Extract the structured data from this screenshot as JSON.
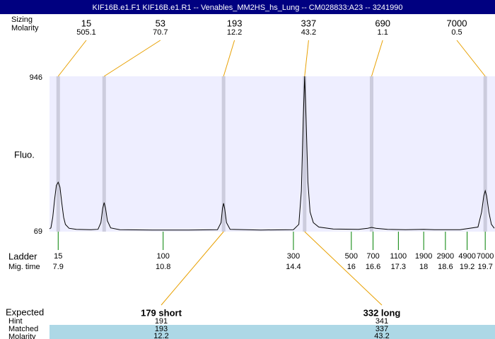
{
  "header": {
    "title": "KIF16B.e1.F1  KIF16B.e1.R1 -- Venables_MM2HS_hs_Lung -- CM028833:A23 -- 3241990"
  },
  "chart_data": {
    "type": "line",
    "y_label": "Fluo.",
    "color": "#000000",
    "ylim": [
      69,
      946
    ],
    "yticks": [
      69,
      946
    ],
    "xlim": [
      7.66,
      19.97
    ],
    "x": [
      7.66,
      7.7,
      7.75,
      7.8,
      7.85,
      7.9,
      7.95,
      8.0,
      8.05,
      8.1,
      8.2,
      8.4,
      8.8,
      9.0,
      9.08,
      9.13,
      9.17,
      9.21,
      9.26,
      9.35,
      9.6,
      10.5,
      11.5,
      12.3,
      12.4,
      12.44,
      12.47,
      12.5,
      12.55,
      12.65,
      13.5,
      14.4,
      14.55,
      14.62,
      14.67,
      14.71,
      14.75,
      14.8,
      14.86,
      14.95,
      15.1,
      15.5,
      16.2,
      16.45,
      16.56,
      16.68,
      17.0,
      17.5,
      18.0,
      18.3,
      19.0,
      19.5,
      19.6,
      19.66,
      19.7,
      19.74,
      19.8,
      19.87,
      19.95
    ],
    "values": [
      85,
      90,
      150,
      250,
      330,
      348,
      320,
      230,
      150,
      110,
      88,
      82,
      80,
      82,
      120,
      200,
      233,
      200,
      130,
      90,
      80,
      78,
      78,
      80,
      120,
      200,
      229,
      200,
      120,
      82,
      78,
      80,
      110,
      300,
      700,
      946,
      700,
      350,
      180,
      120,
      95,
      84,
      82,
      88,
      93,
      88,
      82,
      80,
      82,
      80,
      80,
      95,
      180,
      270,
      300,
      270,
      180,
      110,
      88
    ],
    "peaks": {
      "row_labels": [
        "Sizing",
        "Molarity"
      ],
      "times": [
        7.9,
        9.17,
        12.47,
        14.71,
        16.56,
        19.7
      ],
      "sizes": [
        15,
        53,
        193,
        337,
        690,
        7000
      ],
      "molarity": [
        505.1,
        70.7,
        12.2,
        43.2,
        1.1,
        0.5
      ]
    },
    "ladder": {
      "row_labels": [
        "Ladder",
        "Mig. time"
      ],
      "sizes": [
        15,
        100,
        300,
        500,
        700,
        1100,
        1900,
        2900,
        4900,
        7000
      ],
      "times": [
        7.9,
        10.8,
        14.4,
        16,
        16.6,
        17.3,
        18,
        18.6,
        19.2,
        19.7
      ]
    },
    "expected": {
      "label": "Expected",
      "row_labels": [
        "Hint",
        "Matched",
        "Molarity"
      ],
      "products": [
        {
          "name": "179 short",
          "time": 12.47,
          "hint": 191,
          "matched": 193,
          "molarity": 12.2
        },
        {
          "name": "332 long",
          "time": 14.71,
          "hint": 341,
          "matched": 337,
          "molarity": 43.2
        }
      ]
    }
  }
}
